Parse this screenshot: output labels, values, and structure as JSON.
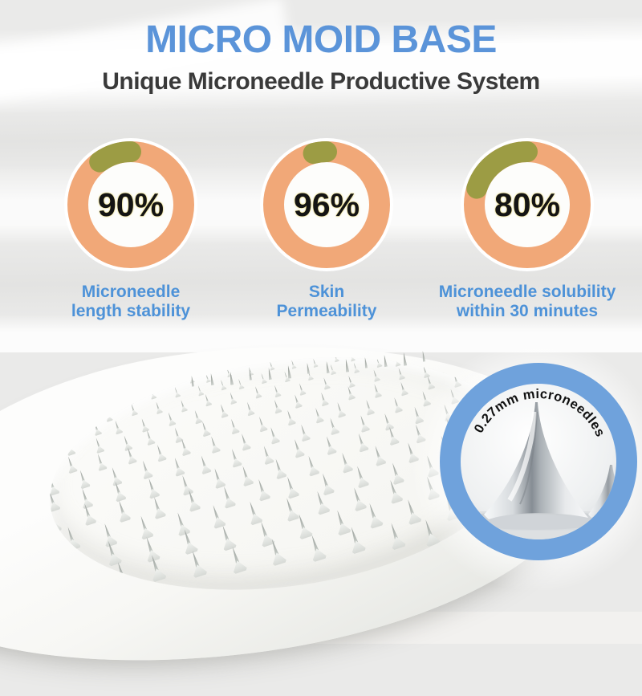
{
  "header": {
    "title": "MICRO MOID BASE",
    "subtitle": "Unique Microneedle Productive System"
  },
  "stats": [
    {
      "pct": 90,
      "value": "90%",
      "label_line1": "Microneedle",
      "label_line2": "length stability"
    },
    {
      "pct": 96,
      "value": "96%",
      "label_line1": "Skin",
      "label_line2": "Permeability"
    },
    {
      "pct": 80,
      "value": "80%",
      "label_line1": "Microneedle solubility",
      "label_line2": "within 30 minutes"
    }
  ],
  "inset": {
    "caption": "0.27mm microneedles"
  },
  "colors": {
    "title_blue": "#5B94D9",
    "subtitle_gray": "#3A3A3A",
    "label_blue": "#4D92D8",
    "ring_orange": "#F1A878",
    "ring_olive": "#9C9C44",
    "percent_black": "#141414",
    "inset_ring_blue": "#6FA2DC"
  }
}
